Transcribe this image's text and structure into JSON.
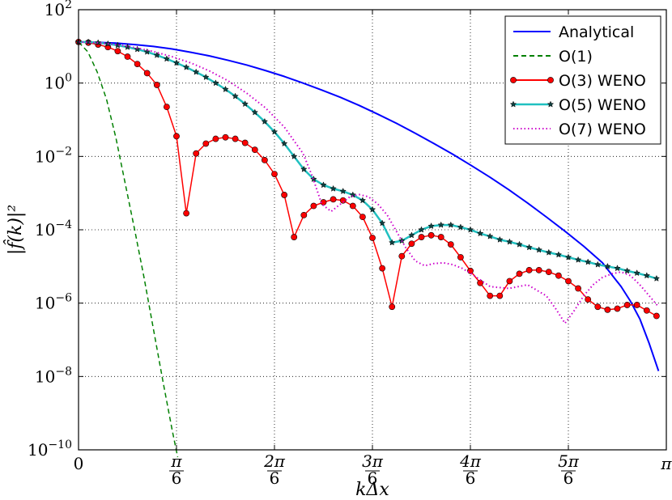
{
  "chart_data": {
    "type": "line",
    "xlabel": "kΔx",
    "ylabel": "|f̂(k)|²",
    "xlim": [
      0,
      3.1416
    ],
    "ylim_log10": [
      -10,
      2
    ],
    "y_scale": "log",
    "grid": true,
    "legend_position": "top-right",
    "x_ticks": [
      {
        "value": 0,
        "label": "0"
      },
      {
        "value": 0.5236,
        "num": "π",
        "den": "6"
      },
      {
        "value": 1.0472,
        "num": "2π",
        "den": "6"
      },
      {
        "value": 1.5708,
        "num": "3π",
        "den": "6"
      },
      {
        "value": 2.0944,
        "num": "4π",
        "den": "6"
      },
      {
        "value": 2.618,
        "num": "5π",
        "den": "6"
      },
      {
        "value": 3.1416,
        "label": "π"
      }
    ],
    "y_ticks": [
      {
        "exp": -10,
        "base": "10",
        "sup": "−10"
      },
      {
        "exp": -8,
        "base": "10",
        "sup": "−8"
      },
      {
        "exp": -6,
        "base": "10",
        "sup": "−6"
      },
      {
        "exp": -4,
        "base": "10",
        "sup": "−4"
      },
      {
        "exp": -2,
        "base": "10",
        "sup": "−2"
      },
      {
        "exp": 0,
        "base": "10",
        "sup": "0"
      },
      {
        "exp": 2,
        "base": "10",
        "sup": "2"
      }
    ],
    "series": [
      {
        "name": "Analytical",
        "color": "#0000ff",
        "style": "solid",
        "marker": "none",
        "x": [
          0,
          0.1,
          0.2,
          0.3,
          0.4,
          0.5,
          0.6,
          0.7,
          0.8,
          0.9,
          1.0,
          1.1,
          1.2,
          1.3,
          1.4,
          1.5,
          1.6,
          1.7,
          1.8,
          1.9,
          2.0,
          2.1,
          2.2,
          2.3,
          2.4,
          2.5,
          2.6,
          2.7,
          2.8,
          2.9,
          2.95,
          3.0,
          3.05,
          3.1
        ],
        "log10y": [
          1.12,
          1.11,
          1.09,
          1.05,
          1.0,
          0.93,
          0.84,
          0.74,
          0.62,
          0.49,
          0.34,
          0.18,
          0.0,
          -0.19,
          -0.39,
          -0.61,
          -0.85,
          -1.1,
          -1.37,
          -1.65,
          -1.94,
          -2.25,
          -2.57,
          -2.91,
          -3.27,
          -3.65,
          -4.04,
          -4.45,
          -4.9,
          -5.55,
          -5.95,
          -6.43,
          -7.1,
          -7.85
        ]
      },
      {
        "name": "O(1)",
        "color": "#008000",
        "style": "dashed",
        "marker": "none",
        "x": [
          0,
          0.05,
          0.1,
          0.15,
          0.2,
          0.25,
          0.3,
          0.35,
          0.4,
          0.45,
          0.5,
          0.53
        ],
        "log10y": [
          1.12,
          0.85,
          0.3,
          -0.45,
          -1.5,
          -2.75,
          -4.0,
          -5.3,
          -6.7,
          -8.1,
          -9.45,
          -10.2
        ]
      },
      {
        "name": "O(3) WENO",
        "color": "#ff0000",
        "style": "solid",
        "marker": "circle",
        "markerfill": "#ff0000",
        "x": [
          0,
          0.0524,
          0.1047,
          0.1571,
          0.2094,
          0.2618,
          0.3142,
          0.3665,
          0.4189,
          0.4712,
          0.5236,
          0.576,
          0.6283,
          0.6807,
          0.733,
          0.7854,
          0.8378,
          0.8901,
          0.9425,
          0.9948,
          1.0472,
          1.0996,
          1.1519,
          1.2043,
          1.2566,
          1.309,
          1.3614,
          1.4137,
          1.4661,
          1.5184,
          1.5708,
          1.6232,
          1.6755,
          1.7279,
          1.7802,
          1.8326,
          1.885,
          1.9373,
          1.9897,
          2.042,
          2.0944,
          2.1468,
          2.1991,
          2.2515,
          2.3038,
          2.3562,
          2.4086,
          2.4609,
          2.5133,
          2.5656,
          2.618,
          2.6704,
          2.7227,
          2.7751,
          2.8274,
          2.8798,
          2.9322,
          2.9845,
          3.0369,
          3.0892
        ],
        "log10y": [
          1.12,
          1.1,
          1.05,
          0.98,
          0.87,
          0.72,
          0.52,
          0.27,
          -0.05,
          -0.65,
          -1.45,
          -3.55,
          -1.92,
          -1.65,
          -1.52,
          -1.48,
          -1.52,
          -1.63,
          -1.82,
          -2.1,
          -2.48,
          -3.05,
          -4.2,
          -3.6,
          -3.35,
          -3.25,
          -3.17,
          -3.2,
          -3.35,
          -3.65,
          -4.22,
          -5.05,
          -6.1,
          -4.72,
          -4.38,
          -4.2,
          -4.15,
          -4.2,
          -4.4,
          -4.75,
          -5.12,
          -5.45,
          -5.8,
          -5.8,
          -5.4,
          -5.2,
          -5.1,
          -5.1,
          -5.15,
          -5.25,
          -5.4,
          -5.6,
          -5.9,
          -6.1,
          -6.18,
          -6.15,
          -6.05,
          -6.05,
          -6.2,
          -6.35
        ]
      },
      {
        "name": "O(5) WENO",
        "color": "#20c0c0",
        "style": "solid",
        "marker": "star",
        "markerfill": "#104040",
        "x": [
          0,
          0.0524,
          0.1047,
          0.1571,
          0.2094,
          0.2618,
          0.3142,
          0.3665,
          0.4189,
          0.4712,
          0.5236,
          0.576,
          0.6283,
          0.6807,
          0.733,
          0.7854,
          0.8378,
          0.8901,
          0.9425,
          0.9948,
          1.0472,
          1.0996,
          1.1519,
          1.2043,
          1.2566,
          1.309,
          1.3614,
          1.4137,
          1.4661,
          1.5184,
          1.5708,
          1.6232,
          1.6755,
          1.7279,
          1.7802,
          1.8326,
          1.885,
          1.9373,
          1.9897,
          2.042,
          2.0944,
          2.1468,
          2.1991,
          2.2515,
          2.3038,
          2.3562,
          2.4086,
          2.4609,
          2.5133,
          2.5656,
          2.618,
          2.6704,
          2.7227,
          2.7751,
          2.8274,
          2.8798,
          2.9322,
          2.9845,
          3.0369,
          3.0892
        ],
        "log10y": [
          1.12,
          1.12,
          1.1,
          1.07,
          1.03,
          0.98,
          0.92,
          0.85,
          0.76,
          0.66,
          0.55,
          0.43,
          0.3,
          0.16,
          0.0,
          -0.17,
          -0.36,
          -0.57,
          -0.8,
          -1.05,
          -1.33,
          -1.65,
          -2.0,
          -2.35,
          -2.62,
          -2.78,
          -2.88,
          -2.95,
          -3.05,
          -3.2,
          -3.45,
          -3.82,
          -4.35,
          -4.3,
          -4.15,
          -4.0,
          -3.9,
          -3.87,
          -3.87,
          -3.93,
          -4.0,
          -4.1,
          -4.18,
          -4.27,
          -4.33,
          -4.4,
          -4.48,
          -4.55,
          -4.62,
          -4.68,
          -4.75,
          -4.82,
          -4.88,
          -4.95,
          -5.0,
          -5.05,
          -5.12,
          -5.18,
          -5.25,
          -5.33
        ]
      },
      {
        "name": "O(7) WENO",
        "color": "#cc00cc",
        "style": "dotted",
        "marker": "none",
        "x": [
          0,
          0.1,
          0.2,
          0.3,
          0.4,
          0.5,
          0.6,
          0.7,
          0.8,
          0.9,
          1.0,
          1.1,
          1.2,
          1.25,
          1.3,
          1.35,
          1.4,
          1.45,
          1.5,
          1.55,
          1.6,
          1.65,
          1.7,
          1.75,
          1.8,
          1.85,
          1.9,
          1.95,
          2.0,
          2.05,
          2.1,
          2.2,
          2.3,
          2.4,
          2.5,
          2.55,
          2.6,
          2.65,
          2.7,
          2.75,
          2.8,
          2.85,
          2.9,
          2.95,
          3.0,
          3.05,
          3.1
        ],
        "log10y": [
          1.12,
          1.1,
          1.05,
          0.97,
          0.86,
          0.72,
          0.55,
          0.33,
          0.06,
          -0.28,
          -0.68,
          -1.2,
          -1.92,
          -2.55,
          -3.3,
          -3.5,
          -3.3,
          -3.1,
          -3.04,
          -3.1,
          -3.3,
          -3.6,
          -4.05,
          -4.5,
          -4.85,
          -4.98,
          -4.92,
          -4.9,
          -4.95,
          -5.05,
          -5.2,
          -5.55,
          -5.6,
          -5.5,
          -5.8,
          -6.15,
          -6.55,
          -6.2,
          -5.8,
          -5.5,
          -5.3,
          -5.2,
          -5.15,
          -5.25,
          -5.5,
          -5.8,
          -6.1
        ]
      }
    ]
  }
}
